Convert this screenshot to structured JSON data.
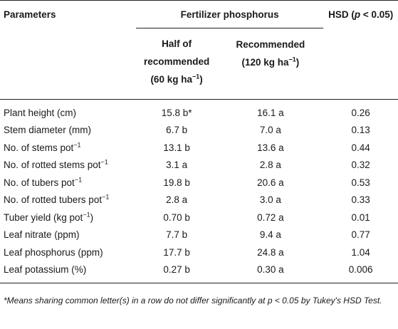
{
  "header": {
    "col_parameters": "Parameters",
    "col_group": "Fertilizer phosphorus",
    "col_hsd_prefix": "HSD (",
    "col_hsd_p": "p",
    "col_hsd_suffix": " < 0.05)",
    "sub_half_line1": "Half of",
    "sub_half_line2": "recommended",
    "sub_half_line3_pre": "(60 kg ha",
    "sub_half_line3_sup": "−1",
    "sub_half_line3_post": ")",
    "sub_rec_line1": "Recommended",
    "sub_rec_line2_pre": "(120 kg ha",
    "sub_rec_line2_sup": "−1",
    "sub_rec_line2_post": ")"
  },
  "rows": [
    {
      "param": "Plant height (cm)",
      "param_sup": "",
      "half": "15.8 b*",
      "rec": "16.1 a",
      "hsd": "0.26"
    },
    {
      "param": "Stem diameter (mm)",
      "param_sup": "",
      "half": "6.7 b",
      "rec": "7.0 a",
      "hsd": "0.13"
    },
    {
      "param": "No. of stems pot",
      "param_sup": "−1",
      "half": "13.1 b",
      "rec": "13.6 a",
      "hsd": "0.44"
    },
    {
      "param": "No. of rotted stems pot",
      "param_sup": "−1",
      "half": "3.1 a",
      "rec": "2.8 a",
      "hsd": "0.32"
    },
    {
      "param": "No. of tubers pot",
      "param_sup": "−1",
      "half": "19.8 b",
      "rec": "20.6 a",
      "hsd": "0.53"
    },
    {
      "param": "No. of rotted tubers pot",
      "param_sup": "−1",
      "half": "2.8 a",
      "rec": "3.0 a",
      "hsd": "0.33"
    },
    {
      "param": "Tuber yield (kg pot",
      "param_sup": "−1",
      "param_post": ")",
      "half": "0.70 b",
      "rec": "0.72 a",
      "hsd": "0.01"
    },
    {
      "param": "Leaf nitrate (ppm)",
      "param_sup": "",
      "half": "7.7 b",
      "rec": "9.4 a",
      "hsd": "0.77"
    },
    {
      "param": "Leaf phosphorus (ppm)",
      "param_sup": "",
      "half": "17.7 b",
      "rec": "24.8 a",
      "hsd": "1.04"
    },
    {
      "param": "Leaf potassium (%)",
      "param_sup": "",
      "half": "0.27 b",
      "rec": "0.30 a",
      "hsd": "0.006"
    }
  ],
  "footnote": "*Means sharing common letter(s) in a row do not differ significantly at p < 0.05 by Tukey's HSD Test."
}
